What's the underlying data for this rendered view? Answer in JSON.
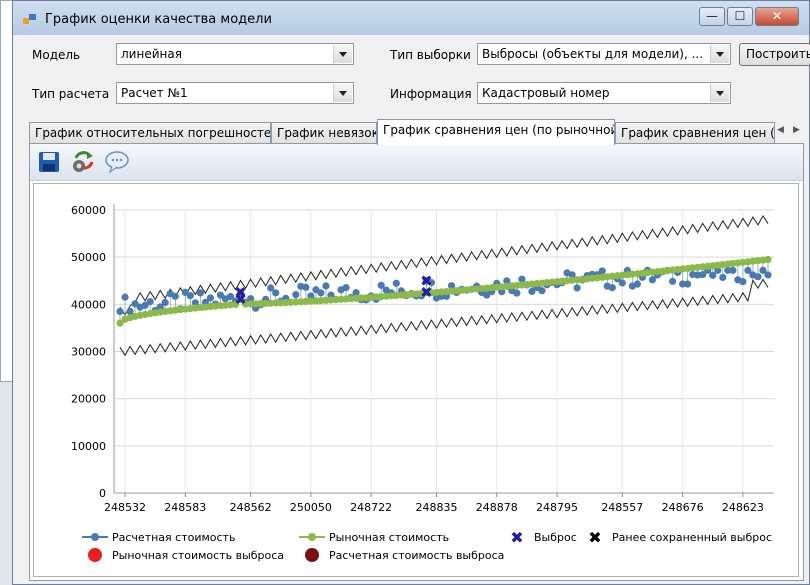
{
  "window": {
    "title": "График оценки качества модели",
    "minimize_label": "—",
    "maximize_label": "☐",
    "close_label": "✕"
  },
  "form": {
    "model_label": "Модель",
    "model_value": "линейная",
    "calc_type_label": "Тип расчета",
    "calc_type_value": "Расчет №1",
    "sample_type_label": "Тип выборки",
    "sample_type_value": "Выбросы (объекты для модели), ...",
    "info_label": "Информация",
    "info_value": "Кадастровый номер",
    "build_button": "Построить"
  },
  "tabs": [
    {
      "label": "График относительных погрешностей",
      "active": false
    },
    {
      "label": "График невязок",
      "active": false
    },
    {
      "label": "График сравнения цен (по рыночной)",
      "active": true
    },
    {
      "label": "График сравнения цен (по расчетной)",
      "active": false
    }
  ],
  "toolbar": {
    "icons": [
      "save-icon",
      "refresh-icon",
      "comment-icon"
    ]
  },
  "colors": {
    "calculated": "#4a7ab4",
    "market": "#8db84a",
    "outlier": "#1f1fa8",
    "saved_outlier": "#000000",
    "market_outlier": "#e8201c",
    "calc_outlier": "#7a1010",
    "band": "#222222"
  },
  "chart_data": {
    "type": "scatter",
    "ylim": [
      0,
      60000
    ],
    "yticks": [
      "0",
      "10000",
      "20000",
      "30000",
      "40000",
      "50000",
      "60000"
    ],
    "categories": [
      "248532",
      "248583",
      "248562",
      "250050",
      "248722",
      "248835",
      "248878",
      "248795",
      "248557",
      "248676",
      "248623"
    ],
    "n_points": 130,
    "series": [
      {
        "name": "Расчетная стоимость",
        "marker": "circle-line"
      },
      {
        "name": "Рыночная стоимость",
        "marker": "circle-line"
      },
      {
        "name": "Выброс",
        "marker": "x"
      },
      {
        "name": "Ранее сохраненный выброс",
        "marker": "x"
      },
      {
        "name": "Рыночная стоимость выброса",
        "marker": "dot"
      },
      {
        "name": "Расчетная стоимость выброса",
        "marker": "dot"
      }
    ],
    "market_range": [
      36000,
      49500
    ],
    "calculated_range": [
      38500,
      46000
    ],
    "upper_band_range": [
      41000,
      58000
    ],
    "lower_band_range": [
      30000,
      42000
    ],
    "outliers": [
      {
        "index": 24,
        "values": [
          41000,
          42500
        ]
      },
      {
        "index": 61,
        "values": [
          42500,
          45000
        ]
      }
    ],
    "legend_position": "bottom"
  }
}
